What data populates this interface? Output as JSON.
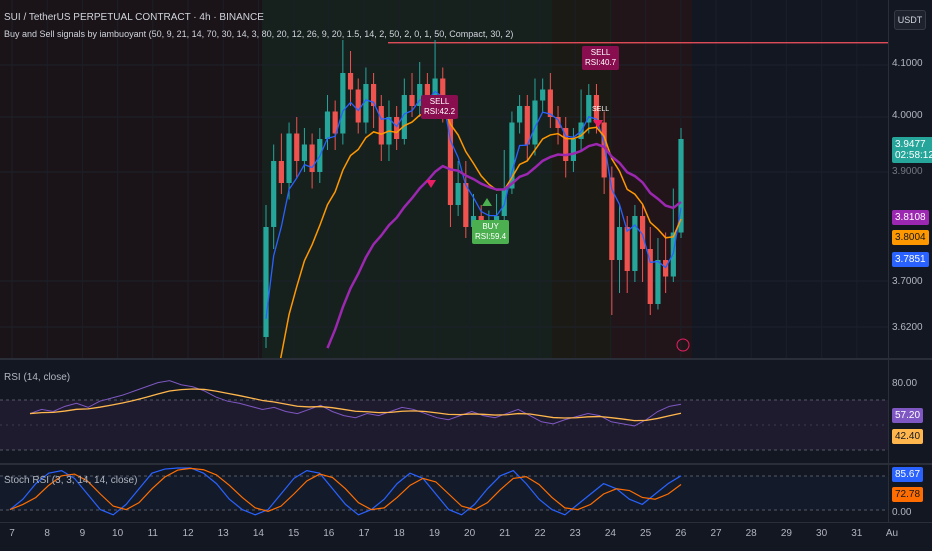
{
  "header": {
    "symbol_title": "SUI / TetherUS PERPETUAL CONTRACT · 4h · BINANCE",
    "indicator_title": "Buy and Sell signals by iambuoyant (50, 9, 21, 14, 70, 30, 14, 3, 80, 20, 12, 26, 9, 20, 1.5, 14, 2, 50, 2, 0, 1, 50, Compact, 30, 2)"
  },
  "currency_button": "USDT",
  "main_axis": {
    "ticks": [
      "4.1000",
      "4.0000",
      "3.9000",
      "3.7000",
      "3.6200"
    ],
    "last_price": "3.9477",
    "countdown": "02:58:12",
    "ma_values": [
      {
        "text": "3.8108",
        "color": "#9c27b0"
      },
      {
        "text": "3.8004",
        "color": "#ff9800"
      },
      {
        "text": "3.7851",
        "color": "#2962ff"
      }
    ]
  },
  "signals": {
    "sell_1": {
      "line1": "SELL",
      "line2": "RSI:42.2"
    },
    "sell_2": {
      "line1": "SELL",
      "line2": "RSI:40.7"
    },
    "buy_1": {
      "line1": "BUY",
      "line2": "RSI:59.4"
    },
    "sell_small": "SELL"
  },
  "rsi_pane": {
    "title": "RSI (14, close)",
    "level_tick": "80.00",
    "rsi_value": "57.20",
    "ma_value": "42.40"
  },
  "stoch_pane": {
    "title": "Stoch RSI (3, 3, 14, 14, close)",
    "k_value": "85.67",
    "d_value": "72.78",
    "zero_tick": "0.00"
  },
  "x_axis": [
    "7",
    "8",
    "9",
    "10",
    "11",
    "12",
    "13",
    "14",
    "15",
    "16",
    "17",
    "18",
    "19",
    "20",
    "21",
    "22",
    "23",
    "24",
    "25",
    "26",
    "27",
    "28",
    "29",
    "30",
    "31",
    "Au"
  ],
  "colors": {
    "up": "#26a69a",
    "down": "#ef5350",
    "ema_fast": "#2962ff",
    "ema_mid": "#ff9800",
    "ema_slow": "#9c27b0",
    "rsi": "#7e57c2",
    "rsi_ma": "#ffb74d",
    "stoch_k": "#2962ff",
    "stoch_d": "#ff6d00",
    "resistance": "#f7525f"
  },
  "chart_data": {
    "type": "candlestick",
    "ylim": [
      3.56,
      4.16
    ],
    "resistance_level": 4.115,
    "candles": [
      [
        3.58,
        3.78,
        3.56,
        3.82
      ],
      [
        3.78,
        3.9,
        3.74,
        3.93
      ],
      [
        3.9,
        3.86,
        3.84,
        3.95
      ],
      [
        3.86,
        3.95,
        3.83,
        3.97
      ],
      [
        3.95,
        3.9,
        3.87,
        3.98
      ],
      [
        3.9,
        3.93,
        3.88,
        3.96
      ],
      [
        3.93,
        3.88,
        3.85,
        3.95
      ],
      [
        3.88,
        3.94,
        3.86,
        3.96
      ],
      [
        3.94,
        3.99,
        3.92,
        4.02
      ],
      [
        3.99,
        3.95,
        3.92,
        4.01
      ],
      [
        3.95,
        4.06,
        3.93,
        4.12
      ],
      [
        4.06,
        4.03,
        4.0,
        4.1
      ],
      [
        4.03,
        3.97,
        3.95,
        4.05
      ],
      [
        3.97,
        4.04,
        3.95,
        4.07
      ],
      [
        4.04,
        4.0,
        3.96,
        4.06
      ],
      [
        4.0,
        3.93,
        3.9,
        4.02
      ],
      [
        3.93,
        3.98,
        3.9,
        4.01
      ],
      [
        3.98,
        3.94,
        3.92,
        4.0
      ],
      [
        3.94,
        4.02,
        3.93,
        4.05
      ],
      [
        4.02,
        4.0,
        3.98,
        4.06
      ],
      [
        4.0,
        4.04,
        3.98,
        4.08
      ],
      [
        4.04,
        4.01,
        3.99,
        4.06
      ],
      [
        4.01,
        4.05,
        3.99,
        4.12
      ],
      [
        4.05,
        4.0,
        3.97,
        4.07
      ],
      [
        4.0,
        3.82,
        3.78,
        4.02
      ],
      [
        3.82,
        3.86,
        3.8,
        3.9
      ],
      [
        3.86,
        3.78,
        3.76,
        3.9
      ],
      [
        3.78,
        3.8,
        3.76,
        3.84
      ],
      [
        3.8,
        3.77,
        3.75,
        3.82
      ],
      [
        3.77,
        3.79,
        3.76,
        3.81
      ],
      [
        3.79,
        3.8,
        3.77,
        3.84
      ],
      [
        3.8,
        3.85,
        3.79,
        3.92
      ],
      [
        3.85,
        3.97,
        3.84,
        3.99
      ],
      [
        3.97,
        4.0,
        3.95,
        4.02
      ],
      [
        4.0,
        3.93,
        3.9,
        4.02
      ],
      [
        3.93,
        4.01,
        3.91,
        4.05
      ],
      [
        4.01,
        4.03,
        3.99,
        4.05
      ],
      [
        4.03,
        3.98,
        3.96,
        4.06
      ],
      [
        3.98,
        3.96,
        3.93,
        4.0
      ],
      [
        3.96,
        3.9,
        3.87,
        3.98
      ],
      [
        3.9,
        3.94,
        3.88,
        3.96
      ],
      [
        3.94,
        3.97,
        3.92,
        4.03
      ],
      [
        3.97,
        4.02,
        3.95,
        4.04
      ],
      [
        4.02,
        3.97,
        3.95,
        4.04
      ],
      [
        3.97,
        3.87,
        3.84,
        3.99
      ],
      [
        3.87,
        3.72,
        3.62,
        3.89
      ],
      [
        3.72,
        3.78,
        3.66,
        3.82
      ],
      [
        3.78,
        3.7,
        3.66,
        3.8
      ],
      [
        3.7,
        3.8,
        3.68,
        3.82
      ],
      [
        3.8,
        3.74,
        3.68,
        3.82
      ],
      [
        3.74,
        3.64,
        3.62,
        3.78
      ],
      [
        3.64,
        3.72,
        3.63,
        3.76
      ],
      [
        3.72,
        3.69,
        3.66,
        3.77
      ],
      [
        3.69,
        3.77,
        3.68,
        3.85
      ],
      [
        3.77,
        3.94,
        3.76,
        3.96
      ]
    ],
    "x_labels": [
      "7",
      "8",
      "9",
      "10",
      "11",
      "12",
      "13",
      "14",
      "15",
      "16",
      "17",
      "18",
      "19",
      "20",
      "21",
      "22",
      "23",
      "24",
      "25",
      "26",
      "27",
      "28",
      "29",
      "30",
      "31",
      "Au"
    ]
  }
}
